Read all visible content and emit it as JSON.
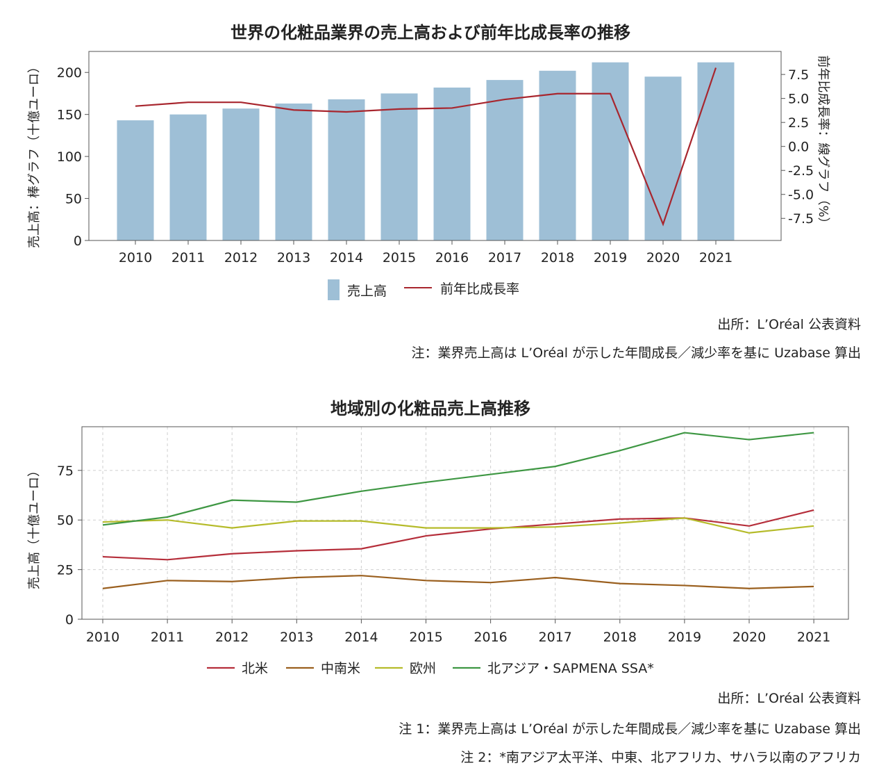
{
  "chart_data": [
    {
      "type": "bar+line",
      "title": "世界の化粧品業界の売上高および前年比成長率の推移",
      "categories": [
        "2010",
        "2011",
        "2012",
        "2013",
        "2014",
        "2015",
        "2016",
        "2017",
        "2018",
        "2019",
        "2020",
        "2021"
      ],
      "ylabel": "売上高：棒グラフ（十億ユーロ）",
      "y2label": "前年比成長率：線グラフ（%）",
      "ylim": [
        0,
        225
      ],
      "yticks": [
        0,
        50,
        100,
        150,
        200
      ],
      "y2lim": [
        -9.8,
        9.9
      ],
      "y2ticks": [
        "-7.5",
        "-5.0",
        "-2.5",
        "0.0",
        "2.5",
        "5.0",
        "7.5"
      ],
      "series": [
        {
          "name": "売上高",
          "kind": "bar",
          "color": "#9ebfd6",
          "values": [
            143,
            150,
            157,
            163,
            168,
            175,
            182,
            191,
            202,
            212,
            195,
            212
          ]
        },
        {
          "name": "前年比成長率",
          "kind": "line",
          "axis": "right",
          "color": "#a8262e",
          "values": [
            4.2,
            4.6,
            4.6,
            3.8,
            3.6,
            3.9,
            4.0,
            4.9,
            5.5,
            5.5,
            -8.1,
            8.2
          ]
        }
      ],
      "source": "出所：L’Oréal 公表資料",
      "note": "注：業界売上高は L’Oréal が示した年間成長／減少率を基に Uzabase 算出"
    },
    {
      "type": "line",
      "title": "地域別の化粧品売上高推移",
      "categories": [
        "2010",
        "2011",
        "2012",
        "2013",
        "2014",
        "2015",
        "2016",
        "2017",
        "2018",
        "2019",
        "2020",
        "2021"
      ],
      "ylabel": "売上高（十億ユーロ）",
      "ylim": [
        0,
        97
      ],
      "yticks": [
        0,
        25,
        50,
        75
      ],
      "grid": true,
      "series": [
        {
          "name": "北米",
          "color": "#b52e3a",
          "values": [
            31.5,
            30,
            33,
            34.5,
            35.5,
            42,
            45.5,
            48,
            50.5,
            51,
            47,
            55
          ]
        },
        {
          "name": "中南米",
          "color": "#9a5f1e",
          "values": [
            15.5,
            19.5,
            19,
            21,
            22,
            19.5,
            18.5,
            21,
            18,
            17,
            15.5,
            16.5
          ]
        },
        {
          "name": "欧州",
          "color": "#b5bb2a",
          "values": [
            49,
            50,
            46,
            49.5,
            49.5,
            46,
            46,
            46.5,
            48.5,
            51,
            43.5,
            47
          ]
        },
        {
          "name": "北アジア・SAPMENA SSA*",
          "color": "#3e9743",
          "values": [
            47.5,
            51.5,
            60,
            59,
            64.5,
            69,
            73,
            77,
            85,
            94,
            90.5,
            94
          ]
        }
      ],
      "source": "出所：L’Oréal 公表資料",
      "note1": "注 1：業界売上高は L’Oréal が示した年間成長／減少率を基に Uzabase 算出",
      "note2": "注 2：*南アジア太平洋、中東、北アフリカ、サハラ以南のアフリカ"
    }
  ]
}
